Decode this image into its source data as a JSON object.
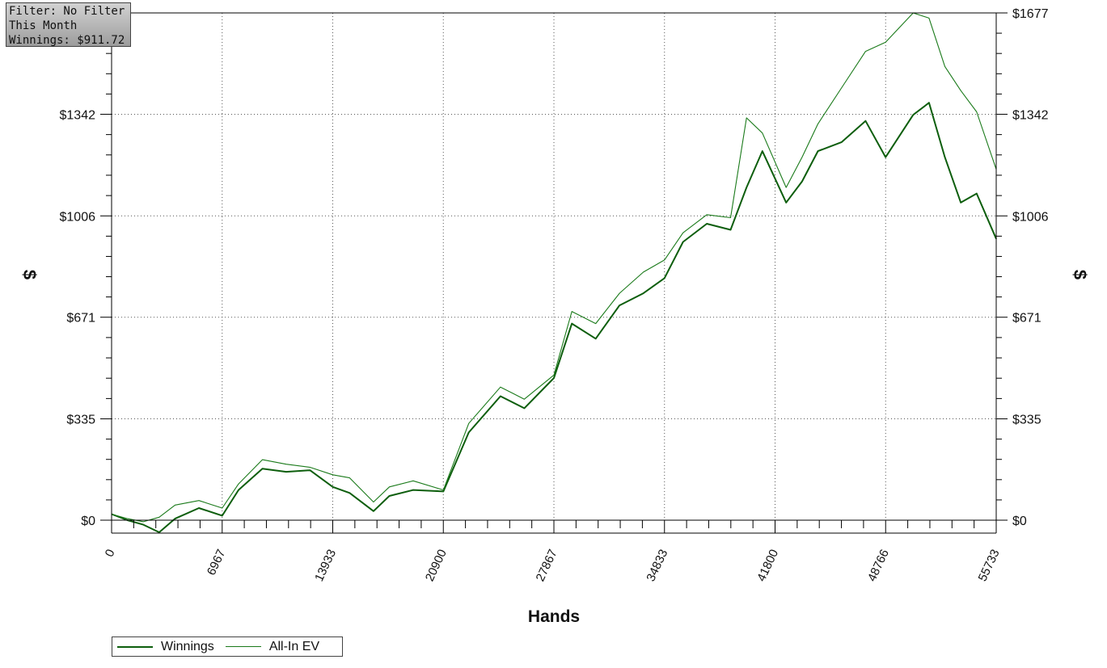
{
  "info": {
    "filter": "Filter: No Filter",
    "period": "This Month",
    "winnings": "Winnings: $911.72"
  },
  "colors": {
    "winnings": "#0d5e0d",
    "allin_ev": "#1a7a1a",
    "grid": "#555555",
    "axis": "#000000"
  },
  "chart_data": {
    "type": "line",
    "xlabel": "Hands",
    "ylabel": "$",
    "xlim": [
      0,
      55733
    ],
    "ylim": [
      -45,
      1677
    ],
    "x_ticks": [
      "0",
      "6967",
      "13933",
      "20900",
      "27867",
      "34833",
      "41800",
      "48766",
      "55733"
    ],
    "y_ticks": [
      "$0",
      "$335",
      "$671",
      "$1006",
      "$1342",
      "$1677"
    ],
    "grid": true,
    "legend_position": "bottom-left",
    "series": [
      {
        "name": "Winnings",
        "x": [
          0,
          1000,
          2000,
          3000,
          4000,
          5500,
          6967,
          8000,
          9500,
          11000,
          12500,
          13933,
          15000,
          16500,
          17500,
          19000,
          20900,
          22500,
          24500,
          26000,
          27867,
          29000,
          30500,
          32000,
          33500,
          34833,
          36000,
          37500,
          39000,
          40000,
          41000,
          42500,
          43500,
          44500,
          46000,
          47500,
          48766,
          50500,
          51500,
          52500,
          53500,
          54500,
          55733
        ],
        "y": [
          20,
          0,
          -15,
          -40,
          5,
          40,
          15,
          100,
          170,
          160,
          165,
          110,
          90,
          30,
          80,
          100,
          95,
          290,
          410,
          370,
          470,
          650,
          600,
          710,
          750,
          800,
          920,
          980,
          960,
          1100,
          1220,
          1050,
          1120,
          1220,
          1250,
          1320,
          1200,
          1340,
          1380,
          1200,
          1050,
          1080,
          930
        ]
      },
      {
        "name": "All-In EV",
        "x": [
          0,
          1000,
          2000,
          3000,
          4000,
          5500,
          6967,
          8000,
          9500,
          11000,
          12500,
          13933,
          15000,
          16500,
          17500,
          19000,
          20900,
          22500,
          24500,
          26000,
          27867,
          29000,
          30500,
          32000,
          33500,
          34833,
          36000,
          37500,
          39000,
          40000,
          41000,
          42500,
          43500,
          44500,
          46000,
          47500,
          48766,
          50500,
          51500,
          52500,
          53500,
          54500,
          55733
        ],
        "y": [
          20,
          5,
          -5,
          10,
          50,
          65,
          40,
          120,
          200,
          185,
          175,
          150,
          140,
          60,
          110,
          130,
          100,
          320,
          440,
          400,
          480,
          690,
          650,
          750,
          820,
          860,
          950,
          1010,
          1000,
          1330,
          1280,
          1100,
          1200,
          1310,
          1430,
          1550,
          1580,
          1677,
          1660,
          1500,
          1420,
          1350,
          1160
        ]
      }
    ]
  }
}
